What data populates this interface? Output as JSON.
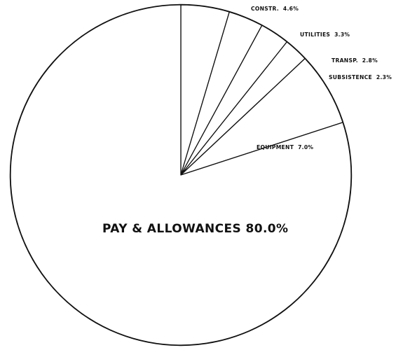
{
  "chart_data": {
    "type": "pie",
    "start_angle_deg": 0,
    "direction": "clockwise",
    "slices": [
      {
        "label": "CONSTR.",
        "value": 4.6,
        "display": "CONSTR.  4.6%"
      },
      {
        "label": "UTILITIES",
        "value": 3.3,
        "display": "UTILITIES  3.3%"
      },
      {
        "label": "TRANSP.",
        "value": 2.8,
        "display": "TRANSP.  2.8%"
      },
      {
        "label": "SUBSISTENCE",
        "value": 2.3,
        "display": "SUBSISTENCE  2.3%"
      },
      {
        "label": "EQUIPMENT",
        "value": 7.0,
        "display": "EQUIPMENT  7.0%"
      },
      {
        "label": "PAY & ALLOWANCES",
        "value": 80.0,
        "display": "PAY & ALLOWANCES 80.0%"
      }
    ],
    "colors": {
      "stroke": "#111111",
      "fill": "#ffffff"
    }
  }
}
